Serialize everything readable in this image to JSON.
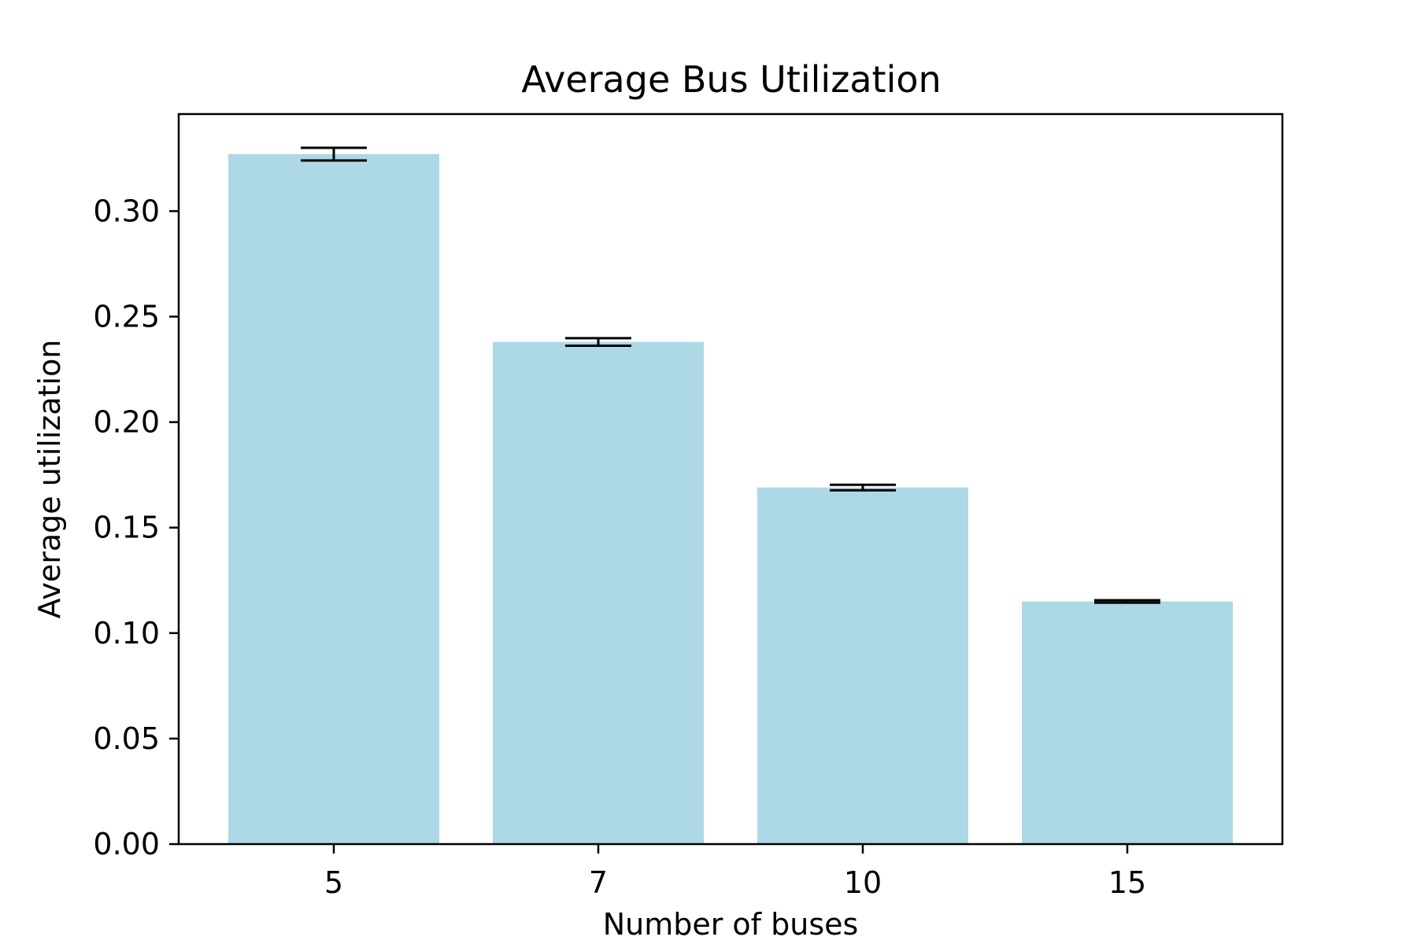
{
  "chart_data": {
    "type": "bar",
    "title": "Average Bus Utilization",
    "xlabel": "Number of buses",
    "ylabel": "Average utilization",
    "categories": [
      "5",
      "7",
      "10",
      "15"
    ],
    "values": [
      0.327,
      0.238,
      0.169,
      0.115
    ],
    "errors": [
      0.003,
      0.0018,
      0.0013,
      0.0006
    ],
    "ylim": [
      0,
      0.346
    ],
    "yticks": [
      "0.00",
      "0.05",
      "0.10",
      "0.15",
      "0.20",
      "0.25",
      "0.30"
    ],
    "bar_color": "#add8e6",
    "error_color": "#000000",
    "grid": false,
    "legend": "none"
  }
}
